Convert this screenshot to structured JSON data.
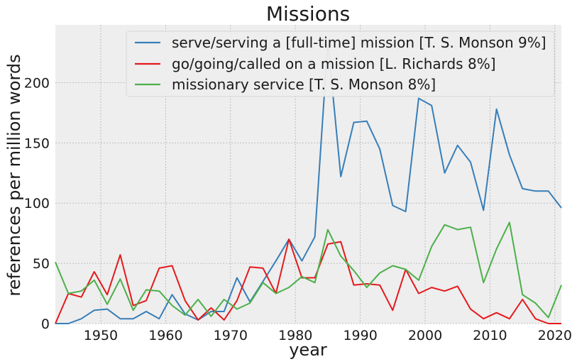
{
  "chart_data": {
    "type": "line",
    "title": "Missions",
    "xlabel": "year",
    "ylabel": "references per million words",
    "xlim": [
      1943,
      2021
    ],
    "ylim": [
      0,
      248
    ],
    "xticks": [
      1950,
      1960,
      1970,
      1980,
      1990,
      2000,
      2010,
      2020
    ],
    "yticks": [
      0,
      50,
      100,
      150,
      200
    ],
    "grid": true,
    "legend_position": "top-right",
    "series": [
      {
        "name": "serve/serving a [full-time] mission [T. S. Monson 9%]",
        "color": "#377eb8",
        "x": [
          1943,
          1945,
          1947,
          1949,
          1951,
          1953,
          1955,
          1957,
          1959,
          1961,
          1963,
          1965,
          1967,
          1969,
          1971,
          1973,
          1975,
          1977,
          1979,
          1981,
          1983,
          1985,
          1987,
          1989,
          1991,
          1993,
          1995,
          1997,
          1999,
          2001,
          2003,
          2005,
          2007,
          2009,
          2011,
          2013,
          2015,
          2017,
          2019,
          2021
        ],
        "y": [
          0,
          0,
          4,
          11,
          12,
          4,
          4,
          10,
          4,
          24,
          8,
          3,
          10,
          10,
          38,
          18,
          35,
          52,
          70,
          52,
          72,
          234,
          122,
          167,
          168,
          145,
          98,
          93,
          187,
          181,
          125,
          148,
          134,
          94,
          178,
          140,
          112,
          110,
          110,
          96
        ]
      },
      {
        "name": "go/going/called on a mission [L. Richards 8%]",
        "color": "#e41a1c",
        "x": [
          1943,
          1945,
          1947,
          1949,
          1951,
          1953,
          1955,
          1957,
          1959,
          1961,
          1963,
          1965,
          1967,
          1969,
          1971,
          1973,
          1975,
          1977,
          1979,
          1981,
          1983,
          1985,
          1987,
          1989,
          1991,
          1993,
          1995,
          1997,
          1999,
          2001,
          2003,
          2005,
          2007,
          2009,
          2011,
          2013,
          2015,
          2017,
          2019,
          2021
        ],
        "y": [
          0,
          25,
          22,
          43,
          24,
          57,
          15,
          19,
          46,
          48,
          19,
          3,
          13,
          3,
          19,
          47,
          46,
          25,
          70,
          38,
          38,
          66,
          68,
          32,
          33,
          32,
          11,
          45,
          25,
          30,
          27,
          31,
          12,
          4,
          9,
          4,
          20,
          4,
          0,
          0
        ]
      },
      {
        "name": "missionary service [T. S. Monson 8%]",
        "color": "#4daf4a",
        "x": [
          1943,
          1945,
          1947,
          1949,
          1951,
          1953,
          1955,
          1957,
          1959,
          1961,
          1963,
          1965,
          1967,
          1969,
          1971,
          1973,
          1975,
          1977,
          1979,
          1981,
          1983,
          1985,
          1987,
          1989,
          1991,
          1993,
          1995,
          1997,
          1999,
          2001,
          2003,
          2005,
          2007,
          2009,
          2011,
          2013,
          2015,
          2017,
          2019,
          2021
        ],
        "y": [
          51,
          25,
          27,
          36,
          16,
          37,
          11,
          28,
          27,
          15,
          7,
          20,
          6,
          20,
          12,
          17,
          34,
          25,
          30,
          39,
          34,
          78,
          56,
          44,
          30,
          42,
          48,
          45,
          36,
          64,
          82,
          78,
          80,
          34,
          62,
          84,
          24,
          17,
          5,
          32
        ]
      }
    ]
  }
}
